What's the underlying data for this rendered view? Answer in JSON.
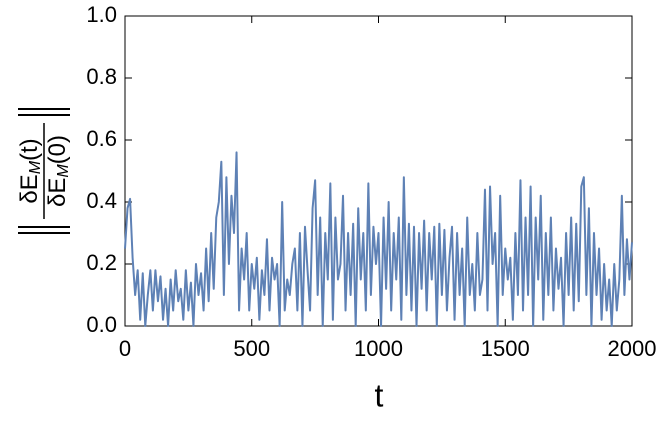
{
  "chart_data": {
    "type": "line",
    "xlabel": "t",
    "ylabel": {
      "numerator": [
        "δE",
        "M",
        "(t)"
      ],
      "denominator": [
        "δE",
        "M",
        "(0)"
      ]
    },
    "color": "#5e81b5",
    "xlim": [
      0,
      2000
    ],
    "ylim": [
      0,
      1
    ],
    "xticks": [
      0,
      500,
      1000,
      1500,
      2000
    ],
    "yticks": [
      {
        "value": 0,
        "label": "0.0"
      },
      0.2,
      0.4,
      0.6,
      0.8,
      {
        "value": 1,
        "label": "1.0"
      }
    ],
    "x": [
      0,
      10,
      20,
      30,
      40,
      50,
      60,
      70,
      80,
      90,
      100,
      110,
      120,
      130,
      140,
      150,
      160,
      170,
      180,
      190,
      200,
      210,
      220,
      230,
      240,
      250,
      260,
      270,
      280,
      290,
      300,
      310,
      320,
      330,
      340,
      350,
      360,
      370,
      380,
      390,
      400,
      410,
      420,
      430,
      440,
      450,
      460,
      470,
      480,
      490,
      500,
      510,
      520,
      530,
      540,
      550,
      560,
      570,
      580,
      590,
      600,
      610,
      620,
      630,
      640,
      650,
      660,
      670,
      680,
      690,
      700,
      710,
      720,
      730,
      740,
      750,
      760,
      770,
      780,
      790,
      800,
      810,
      820,
      830,
      840,
      850,
      860,
      870,
      880,
      890,
      900,
      910,
      920,
      930,
      940,
      950,
      960,
      970,
      980,
      990,
      1000,
      1010,
      1020,
      1030,
      1040,
      1050,
      1060,
      1070,
      1080,
      1090,
      1100,
      1110,
      1120,
      1130,
      1140,
      1150,
      1160,
      1170,
      1180,
      1190,
      1200,
      1210,
      1220,
      1230,
      1240,
      1250,
      1260,
      1270,
      1280,
      1290,
      1300,
      1310,
      1320,
      1330,
      1340,
      1350,
      1360,
      1370,
      1380,
      1390,
      1400,
      1410,
      1420,
      1430,
      1440,
      1450,
      1460,
      1470,
      1480,
      1490,
      1500,
      1510,
      1520,
      1530,
      1540,
      1550,
      1560,
      1570,
      1580,
      1590,
      1600,
      1610,
      1620,
      1630,
      1640,
      1650,
      1660,
      1670,
      1680,
      1690,
      1700,
      1710,
      1720,
      1730,
      1740,
      1750,
      1760,
      1770,
      1780,
      1790,
      1800,
      1810,
      1820,
      1830,
      1840,
      1850,
      1860,
      1870,
      1880,
      1890,
      1900,
      1910,
      1920,
      1930,
      1940,
      1950,
      1960,
      1970,
      1980,
      1990,
      2000
    ],
    "values": [
      0.25,
      0.38,
      0.41,
      0.22,
      0.1,
      0.18,
      0.02,
      0.17,
      0.0,
      0.1,
      0.18,
      0.05,
      0.18,
      0.08,
      0.16,
      0.02,
      0.12,
      0.0,
      0.15,
      0.05,
      0.18,
      0.08,
      0.12,
      0.02,
      0.18,
      0.05,
      0.14,
      0.0,
      0.2,
      0.1,
      0.17,
      0.05,
      0.25,
      0.08,
      0.3,
      0.12,
      0.35,
      0.4,
      0.53,
      0.1,
      0.48,
      0.2,
      0.42,
      0.3,
      0.56,
      0.05,
      0.25,
      0.15,
      0.3,
      0.05,
      0.2,
      0.12,
      0.22,
      0.02,
      0.18,
      0.1,
      0.28,
      0.05,
      0.22,
      0.15,
      0.2,
      0.0,
      0.4,
      0.05,
      0.15,
      0.1,
      0.2,
      0.25,
      0.05,
      0.3,
      0.0,
      0.32,
      0.18,
      0.05,
      0.38,
      0.47,
      0.1,
      0.35,
      0.0,
      0.3,
      0.15,
      0.46,
      0.02,
      0.35,
      0.15,
      0.2,
      0.42,
      0.05,
      0.3,
      0.1,
      0.33,
      0.0,
      0.38,
      0.15,
      0.3,
      0.05,
      0.46,
      0.1,
      0.32,
      0.2,
      0.3,
      0.0,
      0.35,
      0.12,
      0.4,
      0.05,
      0.3,
      0.15,
      0.35,
      0.02,
      0.48,
      0.1,
      0.33,
      0.05,
      0.32,
      0.0,
      0.3,
      0.12,
      0.34,
      0.05,
      0.3,
      0.15,
      0.32,
      0.0,
      0.33,
      0.1,
      0.31,
      0.05,
      0.22,
      0.32,
      0.02,
      0.3,
      0.1,
      0.25,
      0.0,
      0.35,
      0.1,
      0.2,
      0.05,
      0.3,
      0.1,
      0.15,
      0.44,
      0.05,
      0.45,
      0.2,
      0.3,
      0.0,
      0.42,
      0.1,
      0.25,
      0.15,
      0.22,
      0.02,
      0.3,
      0.1,
      0.47,
      0.05,
      0.35,
      0.1,
      0.45,
      0.0,
      0.35,
      0.15,
      0.42,
      0.02,
      0.3,
      0.1,
      0.35,
      0.05,
      0.25,
      0.12,
      0.22,
      0.0,
      0.3,
      0.1,
      0.35,
      0.05,
      0.33,
      0.08,
      0.45,
      0.48,
      0.1,
      0.38,
      0.0,
      0.3,
      0.1,
      0.25,
      0.02,
      0.2,
      0.05,
      0.15,
      0.0,
      0.2,
      0.05,
      0.15,
      0.42,
      0.1,
      0.28,
      0.15,
      0.27
    ]
  }
}
